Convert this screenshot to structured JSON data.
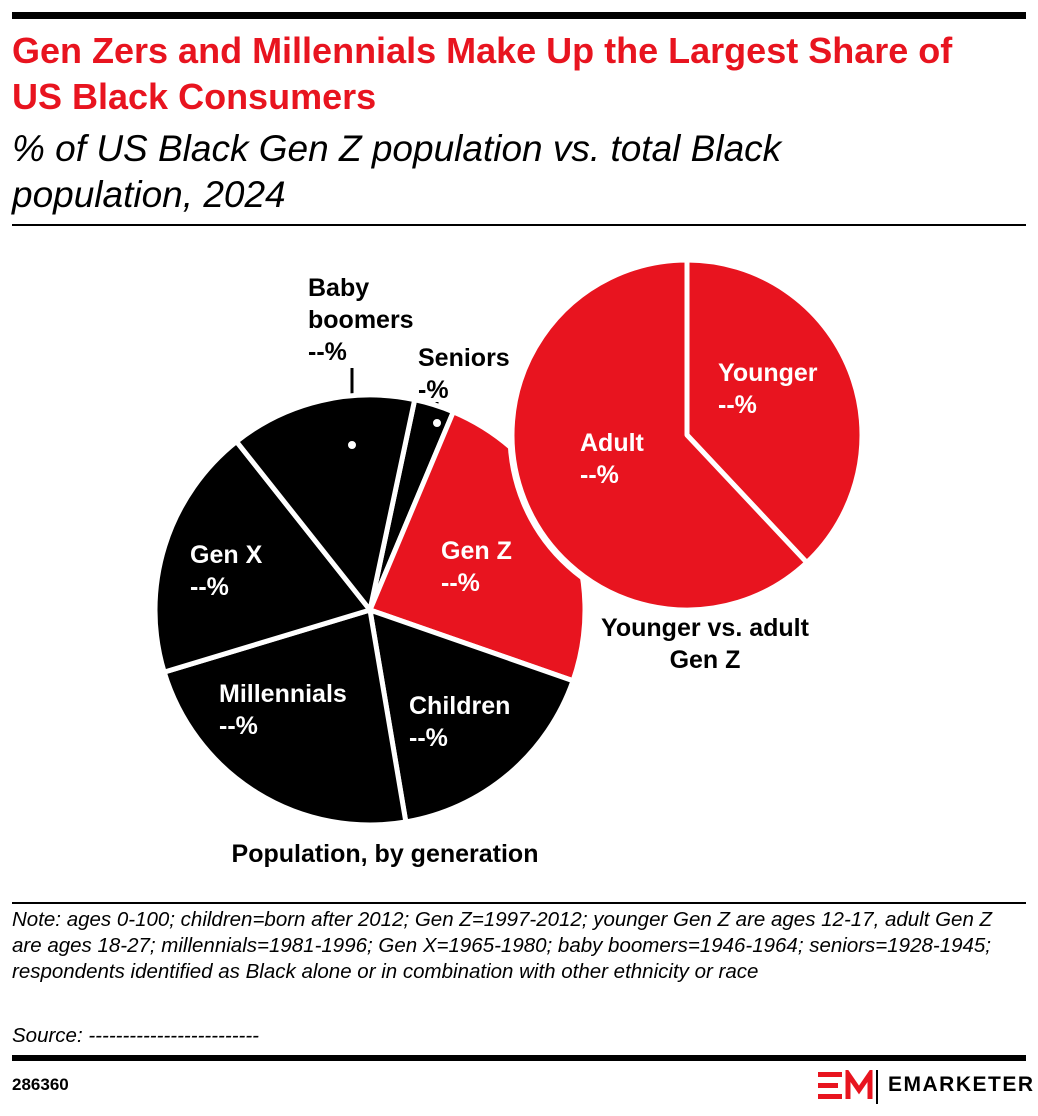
{
  "header": {
    "title": "Gen Zers and Millennials Make Up the Largest Share of US Black Consumers",
    "subtitle": "% of US Black Gen Z population vs. total Black population, 2024"
  },
  "chart_data": [
    {
      "type": "pie",
      "title": "Population, by generation",
      "categories": [
        "Seniors",
        "Gen Z",
        "Children",
        "Millennials",
        "Gen X",
        "Baby boomers"
      ],
      "values": [
        3,
        24,
        17,
        23,
        19,
        14
      ],
      "value_labels": [
        "-%",
        "--%",
        "--%",
        "--%",
        "--%",
        "--%"
      ],
      "colors": [
        "#000000",
        "#e8141f",
        "#000000",
        "#000000",
        "#000000",
        "#000000"
      ]
    },
    {
      "type": "pie",
      "title": "Younger vs. adult Gen Z",
      "categories": [
        "Younger",
        "Adult"
      ],
      "values": [
        38,
        62
      ],
      "value_labels": [
        "--%",
        "--%"
      ],
      "colors": [
        "#e8141f",
        "#e8141f"
      ]
    }
  ],
  "footer": {
    "note": "Note: ages 0-100; children=born after 2012; Gen Z=1997-2012; younger Gen Z are ages 12-17, adult Gen Z are ages 18-27; millennials=1981-1996; Gen X=1965-1980; baby boomers=1946-1964; seniors=1928-1945; respondents identified as Black alone or in combination with other ethnicity or race",
    "source": "Source: -------------------------",
    "id": "286360",
    "brand": "EMARKETER"
  }
}
